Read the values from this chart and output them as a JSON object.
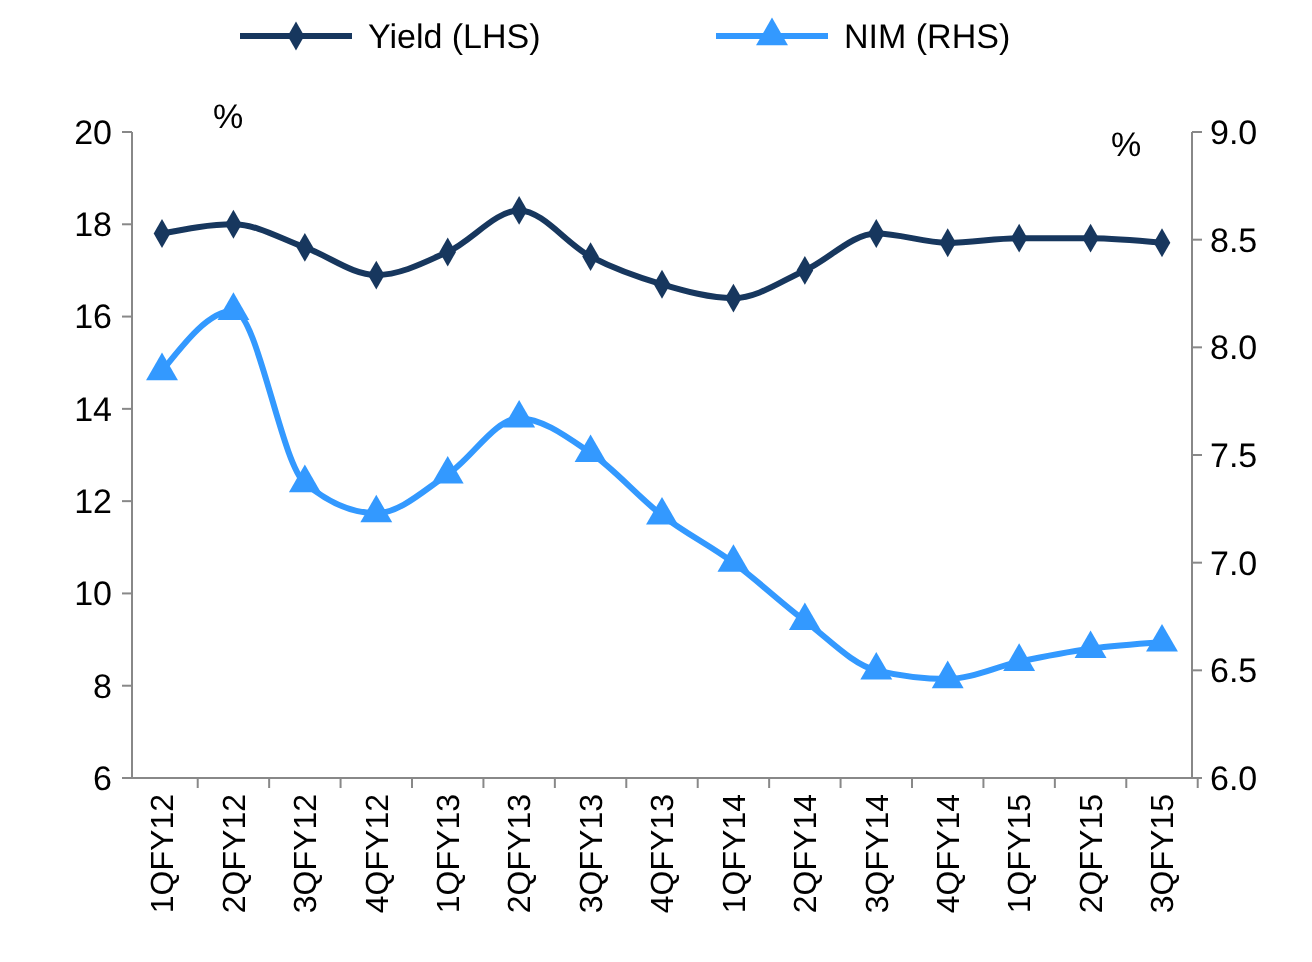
{
  "chart_data": {
    "type": "line",
    "categories": [
      "1QFY12",
      "2QFY12",
      "3QFY12",
      "4QFY12",
      "1QFY13",
      "2QFY13",
      "3QFY13",
      "4QFY13",
      "1QFY14",
      "2QFY14",
      "3QFY14",
      "4QFY14",
      "1QFY15",
      "2QFY15",
      "3QFY15"
    ],
    "series": [
      {
        "name": "Yield (LHS)",
        "color": "#17375e",
        "marker": "diamond",
        "values": [
          17.8,
          18.0,
          17.5,
          16.9,
          17.4,
          18.3,
          17.3,
          16.7,
          16.4,
          17.0,
          17.8,
          17.6,
          17.7,
          17.7,
          17.6
        ]
      },
      {
        "name": "NIM (RHS)",
        "color": "#3399ff",
        "marker": "triangle",
        "axis": "y2",
        "values": [
          7.89,
          8.17,
          7.37,
          7.23,
          7.41,
          7.67,
          7.51,
          7.22,
          7.0,
          6.73,
          6.5,
          6.46,
          6.54,
          6.6,
          6.63
        ]
      }
    ],
    "ylim": [
      6,
      20
    ],
    "yticks": [
      6,
      8,
      10,
      12,
      14,
      16,
      18,
      20
    ],
    "y2lim": [
      6,
      9
    ],
    "y2ticks": [
      {
        "value": 6,
        "label": "6.0"
      },
      {
        "value": 6.5,
        "label": "6.5"
      },
      {
        "value": 7,
        "label": "7.0"
      },
      {
        "value": 7.5,
        "label": "7.5"
      },
      {
        "value": 8,
        "label": "8.0"
      },
      {
        "value": 8.5,
        "label": "8.5"
      },
      {
        "value": 9,
        "label": "9.0"
      }
    ],
    "annotations": [
      "%",
      "%"
    ],
    "legend": "top",
    "grid": false
  }
}
